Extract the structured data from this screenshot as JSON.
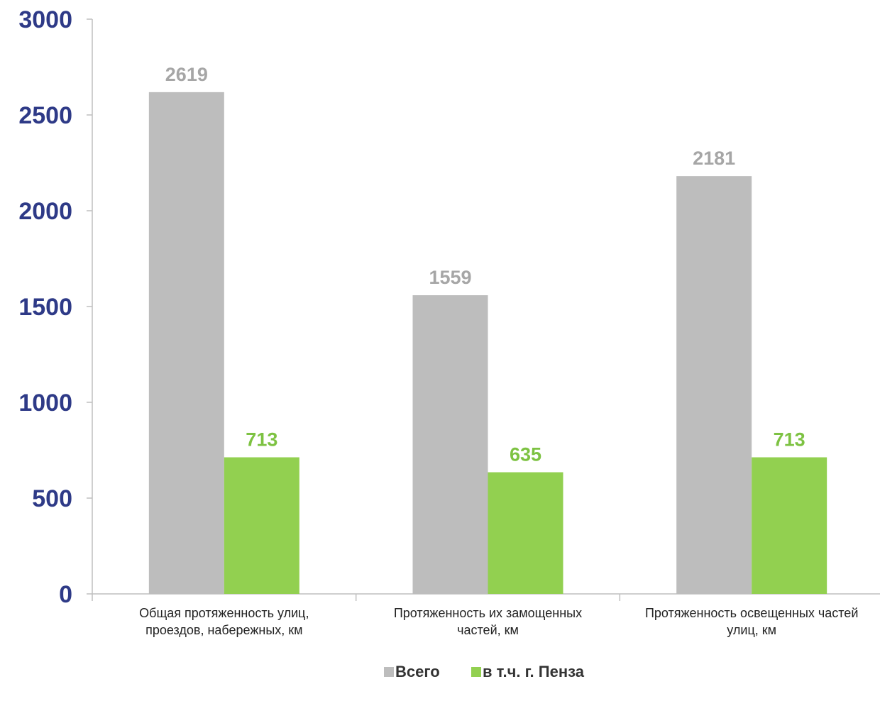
{
  "chart_data": {
    "type": "bar",
    "categories": [
      [
        "Общая протяженность улиц,",
        "проездов, набережных, км"
      ],
      [
        "Протяженность их замощенных",
        "частей, км"
      ],
      [
        "Протяженность освещенных частей",
        "улиц, км"
      ]
    ],
    "series": [
      {
        "name": "Всего",
        "color": "#bdbdbd",
        "label_color": "#a6a6a6",
        "values": [
          2619,
          1559,
          2181
        ]
      },
      {
        "name": "в т.ч. г. Пенза",
        "color": "#92d050",
        "label_color": "#7dc242",
        "values": [
          713,
          635,
          713
        ]
      }
    ],
    "yticks": [
      0,
      500,
      1000,
      1500,
      2000,
      2500,
      3000
    ],
    "ylim": [
      0,
      3000
    ],
    "grid": false,
    "legend_position": "bottom",
    "axis_color": "#bfbfbf"
  }
}
